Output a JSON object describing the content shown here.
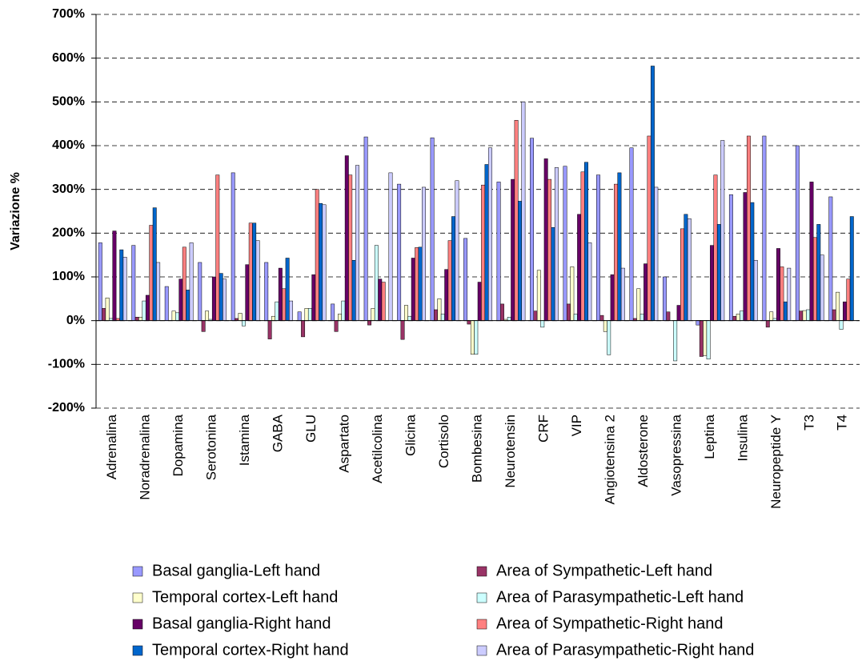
{
  "chart_data": {
    "type": "bar",
    "y_label": "Variazione %",
    "categories": [
      "Adrenalina",
      "Noradrenalina",
      "Dopamina",
      "Serotonina",
      "Istamina",
      "GABA",
      "GLU",
      "Aspartato",
      "Acetilcolina",
      "Glicina",
      "Cortisolo",
      "Bombesina",
      "Neurotensin",
      "CRF",
      "VIP",
      "Angiotensina 2",
      "Aldosterone",
      "Vasopressina",
      "Leptina",
      "Insulina",
      "Neuropeptide Y",
      "T3",
      "T4"
    ],
    "series": [
      {
        "name": "Basal ganglia-Left hand",
        "color": "#9999ff",
        "values": [
          178,
          172,
          78,
          133,
          338,
          133,
          20,
          38,
          420,
          312,
          418,
          188,
          317,
          417,
          353,
          333,
          395,
          100,
          -10,
          288,
          422,
          400,
          283
        ]
      },
      {
        "name": "Area of Sympathetic-Left hand",
        "color": "#993366",
        "values": [
          28,
          8,
          0,
          -25,
          5,
          -42,
          -37,
          -25,
          -10,
          -43,
          25,
          -8,
          38,
          22,
          38,
          12,
          5,
          20,
          -82,
          10,
          -15,
          22,
          25
        ]
      },
      {
        "name": "Temporal cortex-Left hand",
        "color": "#ffffcc",
        "values": [
          52,
          8,
          22,
          22,
          17,
          10,
          28,
          15,
          28,
          35,
          50,
          -77,
          3,
          115,
          123,
          -25,
          73,
          0,
          -80,
          15,
          20,
          23,
          65
        ]
      },
      {
        "name": "Area of Parasympathetic-Left hand",
        "color": "#ccffff",
        "values": [
          5,
          45,
          18,
          3,
          -12,
          43,
          28,
          45,
          172,
          10,
          15,
          -77,
          8,
          -15,
          15,
          -78,
          15,
          -92,
          -88,
          22,
          5,
          25,
          -20
        ]
      },
      {
        "name": "Basal ganglia-Right hand",
        "color": "#660066",
        "values": [
          205,
          58,
          95,
          100,
          128,
          120,
          105,
          377,
          95,
          143,
          117,
          88,
          323,
          370,
          243,
          105,
          130,
          35,
          172,
          293,
          165,
          317,
          43
        ]
      },
      {
        "name": "Area of Sympathetic-Right hand",
        "color": "#ff8080",
        "values": [
          5,
          218,
          168,
          333,
          223,
          73,
          300,
          333,
          88,
          167,
          183,
          310,
          458,
          323,
          340,
          312,
          422,
          210,
          333,
          422,
          123,
          190,
          95
        ]
      },
      {
        "name": "Temporal cortex-Right hand",
        "color": "#0066cc",
        "values": [
          162,
          258,
          70,
          108,
          223,
          143,
          268,
          138,
          0,
          168,
          238,
          357,
          273,
          213,
          362,
          338,
          582,
          243,
          220,
          270,
          43,
          220,
          238
        ]
      },
      {
        "name": "Area of Parasympathetic-Right hand",
        "color": "#ccccff",
        "values": [
          145,
          133,
          178,
          95,
          183,
          45,
          265,
          355,
          338,
          305,
          320,
          395,
          500,
          350,
          178,
          120,
          305,
          233,
          412,
          138,
          120,
          150,
          null
        ]
      }
    ],
    "ylim": [
      -200,
      700
    ],
    "yticks": [
      {
        "value": -200,
        "label": "-200%"
      },
      {
        "value": -100,
        "label": "-100%"
      },
      {
        "value": 0,
        "label": "0%"
      },
      {
        "value": 100,
        "label": "100%"
      },
      {
        "value": 200,
        "label": "200%"
      },
      {
        "value": 300,
        "label": "300%"
      },
      {
        "value": 400,
        "label": "400%"
      },
      {
        "value": 500,
        "label": "500%"
      },
      {
        "value": 600,
        "label": "600%"
      },
      {
        "value": 700,
        "label": "700%"
      }
    ],
    "grid": true
  }
}
